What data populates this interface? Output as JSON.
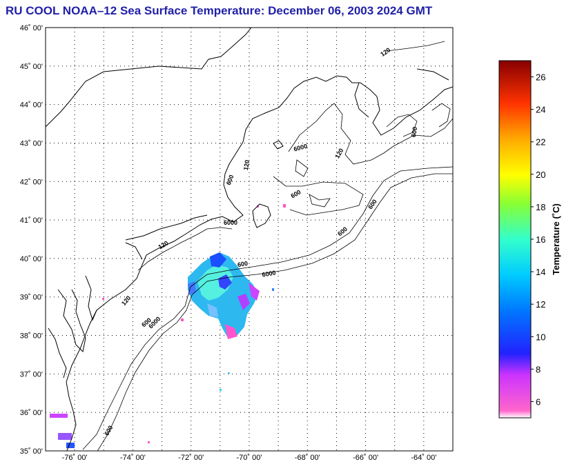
{
  "title": "RU COOL  NOAA–12  Sea Surface Temperature:  December 06, 2003 2024 GMT",
  "map": {
    "lon_range": [
      -77,
      -63
    ],
    "lat_range": [
      35,
      46
    ],
    "lat_labels": [
      "35˚ 00'",
      "36˚ 00'",
      "37˚ 00'",
      "38˚ 00'",
      "39˚ 00'",
      "40˚ 00'",
      "41˚ 00'",
      "42˚ 00'",
      "43˚ 00'",
      "44˚ 00'",
      "45˚ 00'",
      "46˚ 00'"
    ],
    "lon_labels": [
      "-76˚ 00'",
      "-74˚ 00'",
      "-72˚ 00'",
      "-70˚ 00'",
      "-68˚ 00'",
      "-66˚ 00'",
      "-64˚ 00'"
    ],
    "contour_labels": [
      "120",
      "600",
      "6000",
      "120",
      "120",
      "600",
      "600",
      "600",
      "6000",
      "600",
      "6000",
      "600",
      "600",
      "6000",
      "120",
      "120",
      "600"
    ]
  },
  "colorbar": {
    "title": "Temperature (˚C)",
    "range": [
      5,
      27
    ],
    "ticks": [
      "6",
      "8",
      "10",
      "12",
      "14",
      "16",
      "18",
      "20",
      "22",
      "24",
      "26"
    ]
  },
  "colors": {
    "title": "#1f1fa8",
    "grid": "#000000",
    "coast": "#000000"
  }
}
